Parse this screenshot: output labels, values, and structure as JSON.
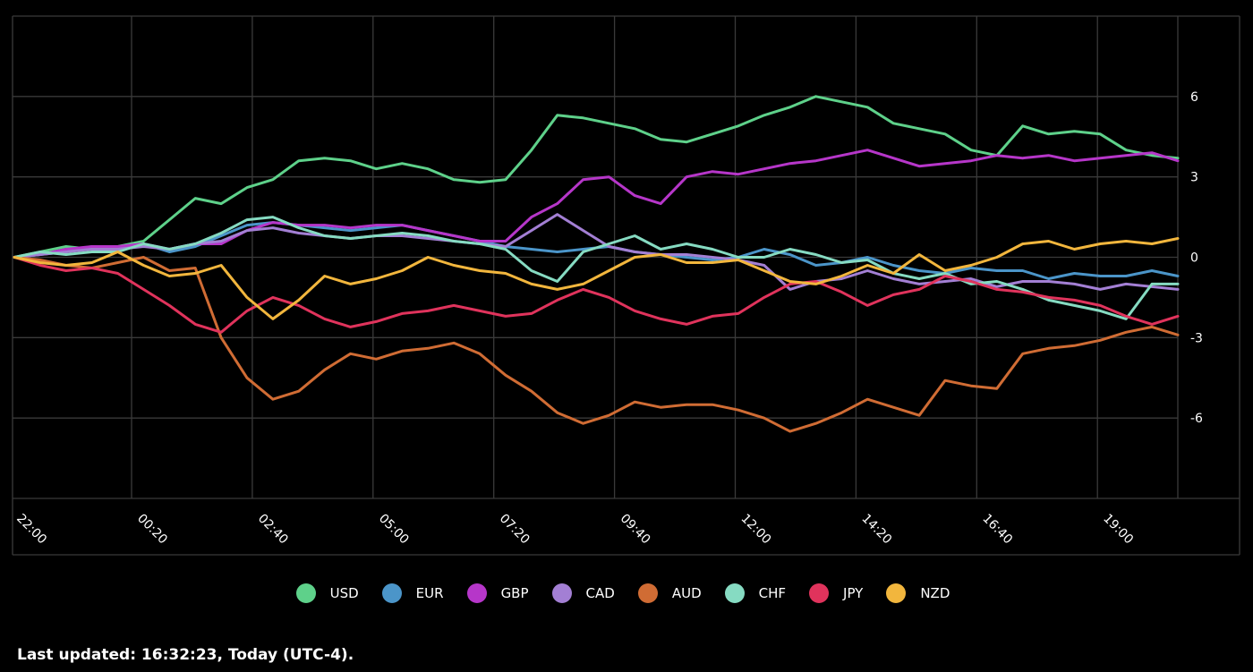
{
  "chart_data": {
    "type": "line",
    "title": "",
    "xlabel": "",
    "ylabel": "",
    "y_ticks": [
      6,
      3,
      0,
      -3,
      -6
    ],
    "x_ticks": [
      "22:00",
      "00:20",
      "02:40",
      "05:00",
      "07:20",
      "09:40",
      "12:00",
      "14:20",
      "16:40",
      "19:00"
    ],
    "ylim": [
      -9,
      9
    ],
    "grid": true,
    "legend_position": "bottom-center",
    "series": [
      {
        "name": "USD",
        "color": "#5ed18a",
        "values": [
          0,
          0.2,
          0.4,
          0.3,
          0.4,
          0.6,
          1.4,
          2.2,
          2.0,
          2.6,
          2.9,
          3.6,
          3.7,
          3.6,
          3.3,
          3.5,
          3.3,
          2.9,
          2.8,
          2.9,
          4.0,
          5.3,
          5.2,
          5.0,
          4.8,
          4.4,
          4.3,
          4.6,
          4.9,
          5.3,
          5.6,
          6.0,
          5.8,
          5.6,
          5.0,
          4.8,
          4.6,
          4.0,
          3.8,
          4.9,
          4.6,
          4.7,
          4.6,
          4.0,
          3.8,
          3.7
        ]
      },
      {
        "name": "EUR",
        "color": "#4b95c9",
        "values": [
          0,
          0.1,
          0.2,
          0.4,
          0.3,
          0.5,
          0.2,
          0.4,
          0.8,
          1.2,
          1.3,
          1.2,
          1.1,
          1.0,
          1.1,
          1.2,
          1.0,
          0.8,
          0.6,
          0.4,
          0.3,
          0.2,
          0.3,
          0.4,
          0.2,
          0.1,
          0.0,
          -0.1,
          0.0,
          0.3,
          0.1,
          -0.3,
          -0.2,
          0.0,
          -0.3,
          -0.5,
          -0.6,
          -0.4,
          -0.5,
          -0.5,
          -0.8,
          -0.6,
          -0.7,
          -0.7,
          -0.5,
          -0.7
        ]
      },
      {
        "name": "GBP",
        "color": "#b636c9",
        "values": [
          0,
          0.1,
          0.3,
          0.4,
          0.4,
          0.5,
          0.3,
          0.5,
          0.5,
          1.0,
          1.3,
          1.2,
          1.2,
          1.1,
          1.2,
          1.2,
          1.0,
          0.8,
          0.6,
          0.6,
          1.5,
          2.0,
          2.9,
          3.0,
          2.3,
          2.0,
          3.0,
          3.2,
          3.1,
          3.3,
          3.5,
          3.6,
          3.8,
          4.0,
          3.7,
          3.4,
          3.5,
          3.6,
          3.8,
          3.7,
          3.8,
          3.6,
          3.7,
          3.8,
          3.9,
          3.6
        ]
      },
      {
        "name": "CAD",
        "color": "#a37fd4",
        "values": [
          0,
          0.1,
          0.2,
          0.3,
          0.3,
          0.4,
          0.3,
          0.5,
          0.6,
          1.0,
          1.1,
          0.9,
          0.8,
          0.7,
          0.8,
          0.8,
          0.7,
          0.6,
          0.5,
          0.4,
          1.0,
          1.6,
          1.0,
          0.4,
          0.2,
          0.1,
          0.1,
          0.0,
          -0.1,
          -0.3,
          -1.2,
          -0.9,
          -0.8,
          -0.5,
          -0.8,
          -1.0,
          -0.9,
          -0.8,
          -1.1,
          -0.9,
          -0.9,
          -1.0,
          -1.2,
          -1.0,
          -1.1,
          -1.2
        ]
      },
      {
        "name": "AUD",
        "color": "#d06c34",
        "values": [
          0,
          -0.1,
          -0.3,
          -0.4,
          -0.2,
          0.0,
          -0.5,
          -0.4,
          -3.0,
          -4.5,
          -5.3,
          -5.0,
          -4.2,
          -3.6,
          -3.8,
          -3.5,
          -3.4,
          -3.2,
          -3.6,
          -4.4,
          -5.0,
          -5.8,
          -6.2,
          -5.9,
          -5.4,
          -5.6,
          -5.5,
          -5.5,
          -5.7,
          -6.0,
          -6.5,
          -6.2,
          -5.8,
          -5.3,
          -5.6,
          -5.9,
          -4.6,
          -4.8,
          -4.9,
          -3.6,
          -3.4,
          -3.3,
          -3.1,
          -2.8,
          -2.6,
          -2.9
        ]
      },
      {
        "name": "CHF",
        "color": "#86dbc2",
        "values": [
          0,
          0.2,
          0.1,
          0.2,
          0.2,
          0.5,
          0.3,
          0.5,
          0.9,
          1.4,
          1.5,
          1.1,
          0.8,
          0.7,
          0.8,
          0.9,
          0.8,
          0.6,
          0.5,
          0.3,
          -0.5,
          -0.9,
          0.2,
          0.5,
          0.8,
          0.3,
          0.5,
          0.3,
          0.0,
          0.0,
          0.3,
          0.1,
          -0.2,
          -0.1,
          -0.6,
          -0.8,
          -0.6,
          -1.0,
          -0.9,
          -1.2,
          -1.6,
          -1.8,
          -2.0,
          -2.3,
          -1.0,
          -1.0
        ]
      },
      {
        "name": "JPY",
        "color": "#e0335c",
        "values": [
          0,
          -0.3,
          -0.5,
          -0.4,
          -0.6,
          -1.2,
          -1.8,
          -2.5,
          -2.8,
          -2.0,
          -1.5,
          -1.8,
          -2.3,
          -2.6,
          -2.4,
          -2.1,
          -2.0,
          -1.8,
          -2.0,
          -2.2,
          -2.1,
          -1.6,
          -1.2,
          -1.5,
          -2.0,
          -2.3,
          -2.5,
          -2.2,
          -2.1,
          -1.5,
          -1.0,
          -0.9,
          -1.3,
          -1.8,
          -1.4,
          -1.2,
          -0.7,
          -0.9,
          -1.2,
          -1.3,
          -1.5,
          -1.6,
          -1.8,
          -2.2,
          -2.5,
          -2.2
        ]
      },
      {
        "name": "NZD",
        "color": "#f2b63d",
        "values": [
          0,
          -0.2,
          -0.3,
          -0.2,
          0.2,
          -0.3,
          -0.7,
          -0.6,
          -0.3,
          -1.5,
          -2.3,
          -1.6,
          -0.7,
          -1.0,
          -0.8,
          -0.5,
          0.0,
          -0.3,
          -0.5,
          -0.6,
          -1.0,
          -1.2,
          -1.0,
          -0.5,
          0.0,
          0.1,
          -0.2,
          -0.2,
          -0.1,
          -0.5,
          -0.9,
          -1.0,
          -0.7,
          -0.3,
          -0.6,
          0.1,
          -0.5,
          -0.3,
          0.0,
          0.5,
          0.6,
          0.3,
          0.5,
          0.6,
          0.5,
          0.7
        ]
      }
    ]
  },
  "footer": {
    "last_updated": "Last updated: 16:32:23, Today (UTC-4)."
  }
}
